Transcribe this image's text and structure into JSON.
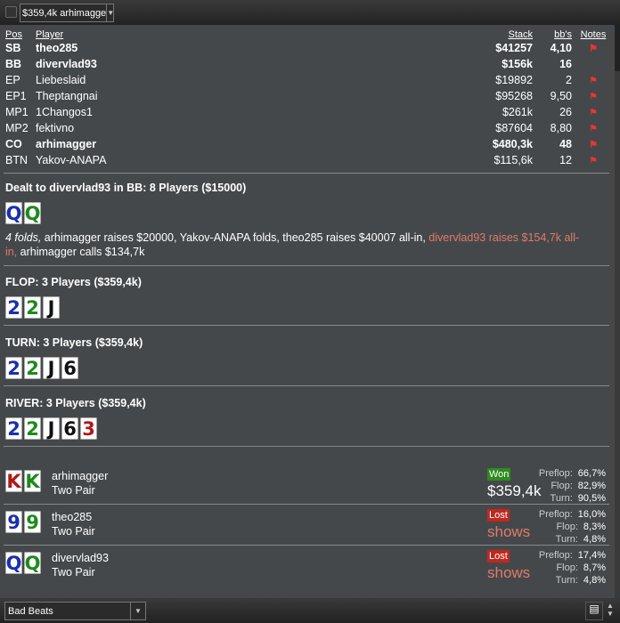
{
  "toolbar": {
    "hand_select": "$359,4k arhimagge"
  },
  "table": {
    "headers": {
      "pos": "Pos",
      "player": "Player",
      "stack": "Stack",
      "bbs": "bb's",
      "notes": "Notes"
    },
    "rows": [
      {
        "pos": "SB",
        "player": "theo285",
        "stack": "$41257",
        "bbs": "4,10",
        "flag": "⚑",
        "bold": true
      },
      {
        "pos": "BB",
        "player": "divervlad93",
        "stack": "$156k",
        "bbs": "16",
        "flag": "",
        "bold": true
      },
      {
        "pos": "EP",
        "player": "Liebeslaid",
        "stack": "$19892",
        "bbs": "2",
        "flag": "⚑"
      },
      {
        "pos": "EP1",
        "player": "Theptangnai",
        "stack": "$95268",
        "bbs": "9,50",
        "flag": "⚑"
      },
      {
        "pos": "MP1",
        "player": "1Changos1",
        "stack": "$261k",
        "bbs": "26",
        "flag": "⚑"
      },
      {
        "pos": "MP2",
        "player": "fektivno",
        "stack": "$87604",
        "bbs": "8,80",
        "flag": "⚑"
      },
      {
        "pos": "CO",
        "player": "arhimagger",
        "stack": "$480,3k",
        "bbs": "48",
        "flag": "⚑",
        "bold": true
      },
      {
        "pos": "BTN",
        "player": "Yakov-ANAPA",
        "stack": "$115,6k",
        "bbs": "12",
        "flag": "⚑"
      }
    ]
  },
  "preflop": {
    "title": "Dealt to divervlad93 in BB: 8 Players ($15000)",
    "cards": [
      {
        "r": "Q",
        "c": "#1a2fb0"
      },
      {
        "r": "Q",
        "c": "#1d8a1d"
      }
    ],
    "actions_italic": "4 folds,",
    "actions": " arhimagger raises $20000, Yakov-ANAPA folds, theo285 raises $40007 all-in, ",
    "actions_hero": "divervlad93 raises $154,7k all-in,",
    "actions_end": " arhimagger calls $134,7k"
  },
  "flop": {
    "title": "FLOP: 3 Players ($359,4k)",
    "cards": [
      {
        "r": "2",
        "c": "#1a2fb0"
      },
      {
        "r": "2",
        "c": "#1d8a1d"
      },
      {
        "r": "J",
        "c": "#111"
      }
    ]
  },
  "turn": {
    "title": "TURN: 3 Players ($359,4k)",
    "cards": [
      {
        "r": "2",
        "c": "#1a2fb0"
      },
      {
        "r": "2",
        "c": "#1d8a1d"
      },
      {
        "r": "J",
        "c": "#111"
      },
      {
        "r": "6",
        "c": "#111"
      }
    ]
  },
  "river": {
    "title": "RIVER: 3 Players ($359,4k)",
    "cards": [
      {
        "r": "2",
        "c": "#1a2fb0"
      },
      {
        "r": "2",
        "c": "#1d8a1d"
      },
      {
        "r": "J",
        "c": "#111"
      },
      {
        "r": "6",
        "c": "#111"
      },
      {
        "r": "3",
        "c": "#b01818"
      }
    ]
  },
  "results": [
    {
      "name": "arhimagger",
      "hand": "Two Pair",
      "status": "Won",
      "status_color": "#2e8b1e",
      "amount": "$359,4k",
      "amount_color": "#ffffff",
      "cards": [
        {
          "r": "K",
          "c": "#b01818"
        },
        {
          "r": "K",
          "c": "#1d8a1d"
        }
      ],
      "eq": [
        [
          "Preflop:",
          "66,7%"
        ],
        [
          "Flop:",
          "82,9%"
        ],
        [
          "Turn:",
          "90,5%"
        ]
      ]
    },
    {
      "name": "theo285",
      "hand": "Two Pair",
      "status": "Lost",
      "status_color": "#c0281e",
      "amount": "shows",
      "amount_color": "#e07a6a",
      "cards": [
        {
          "r": "9",
          "c": "#1a2fb0"
        },
        {
          "r": "9",
          "c": "#1d8a1d"
        }
      ],
      "eq": [
        [
          "Preflop:",
          "16,0%"
        ],
        [
          "Flop:",
          "8,3%"
        ],
        [
          "Turn:",
          "4,8%"
        ]
      ]
    },
    {
      "name": "divervlad93",
      "hand": "Two Pair",
      "status": "Lost",
      "status_color": "#c0281e",
      "amount": "shows",
      "amount_color": "#e07a6a",
      "cards": [
        {
          "r": "Q",
          "c": "#1a2fb0"
        },
        {
          "r": "Q",
          "c": "#1d8a1d"
        }
      ],
      "eq": [
        [
          "Preflop:",
          "17,4%"
        ],
        [
          "Flop:",
          "8,7%"
        ],
        [
          "Turn:",
          "4,8%"
        ]
      ]
    }
  ],
  "footer": {
    "filter": "Bad Beats"
  },
  "colors": {
    "flag": "#e33333",
    "hero_action": "#e07a6a"
  }
}
